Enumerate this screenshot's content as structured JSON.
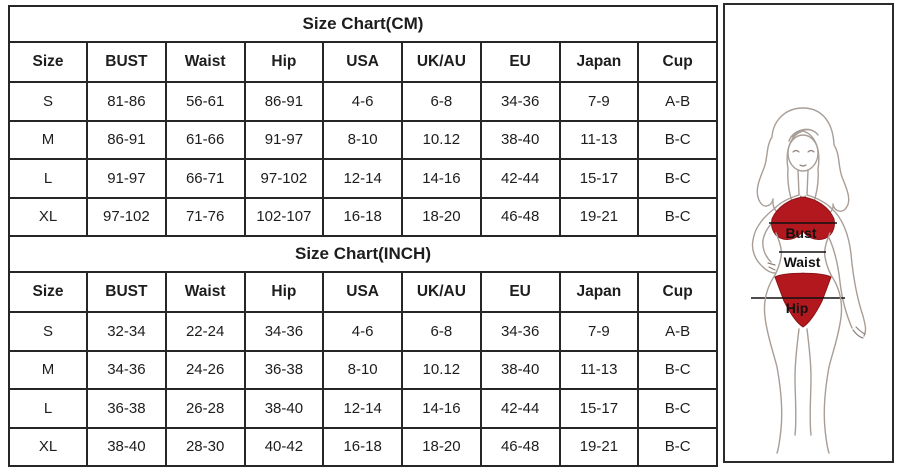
{
  "tables": [
    {
      "title": "Size Chart(CM)",
      "headers": [
        "Size",
        "BUST",
        "Waist",
        "Hip",
        "USA",
        "UK/AU",
        "EU",
        "Japan",
        "Cup"
      ],
      "rows": [
        [
          "S",
          "81-86",
          "56-61",
          "86-91",
          "4-6",
          "6-8",
          "34-36",
          "7-9",
          "A-B"
        ],
        [
          "M",
          "86-91",
          "61-66",
          "91-97",
          "8-10",
          "10.12",
          "38-40",
          "11-13",
          "B-C"
        ],
        [
          "L",
          "91-97",
          "66-71",
          "97-102",
          "12-14",
          "14-16",
          "42-44",
          "15-17",
          "B-C"
        ],
        [
          "XL",
          "97-102",
          "71-76",
          "102-107",
          "16-18",
          "18-20",
          "46-48",
          "19-21",
          "B-C"
        ]
      ]
    },
    {
      "title": "Size Chart(INCH)",
      "headers": [
        "Size",
        "BUST",
        "Waist",
        "Hip",
        "USA",
        "UK/AU",
        "EU",
        "Japan",
        "Cup"
      ],
      "rows": [
        [
          "S",
          "32-34",
          "22-24",
          "34-36",
          "4-6",
          "6-8",
          "34-36",
          "7-9",
          "A-B"
        ],
        [
          "M",
          "34-36",
          "24-26",
          "36-38",
          "8-10",
          "10.12",
          "38-40",
          "11-13",
          "B-C"
        ],
        [
          "L",
          "36-38",
          "26-28",
          "38-40",
          "12-14",
          "14-16",
          "42-44",
          "15-17",
          "B-C"
        ],
        [
          "XL",
          "38-40",
          "28-30",
          "40-42",
          "16-18",
          "18-20",
          "46-48",
          "19-21",
          "B-C"
        ]
      ]
    }
  ],
  "figure": {
    "bust_label": "Bust",
    "waist_label": "Waist",
    "hip_label": "Hip",
    "bikini_color": "#b2181e",
    "outline_color": "#a89e97"
  }
}
